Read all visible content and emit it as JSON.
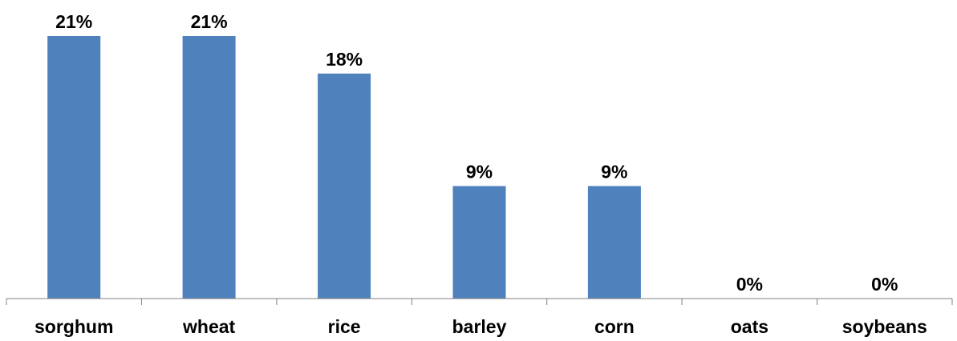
{
  "chart_data": {
    "type": "bar",
    "title": "",
    "xlabel": "",
    "ylabel": "",
    "categories": [
      "sorghum",
      "wheat",
      "rice",
      "barley",
      "corn",
      "oats",
      "soybeans"
    ],
    "values": [
      21,
      21,
      18,
      9,
      9,
      0,
      0
    ],
    "data_labels": [
      "21%",
      "21%",
      "18%",
      "9%",
      "9%",
      "0%",
      "0%"
    ],
    "value_unit": "%",
    "ylim": [
      0,
      21
    ],
    "grid": false,
    "legend": "none",
    "colors": {
      "bar": "#4F81BD",
      "axis": "#808080",
      "text": "#000000"
    }
  }
}
